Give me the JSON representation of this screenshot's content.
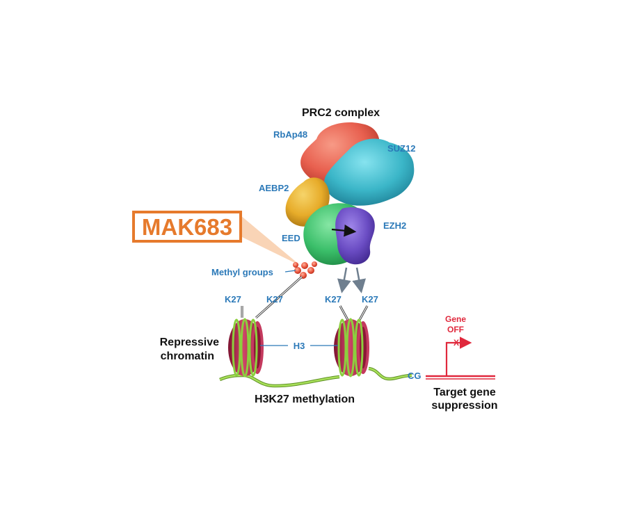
{
  "title": "PRC2 complex",
  "drug": {
    "name": "MAK683",
    "color": "#e67a2c"
  },
  "subunits": {
    "rbap48": "RbAp48",
    "suz12": "SUZ12",
    "aebp2": "AEBP2",
    "eed": "EED",
    "ezh2": "EZH2"
  },
  "methyl_groups": "Methyl groups",
  "residues": {
    "k27": "K27"
  },
  "histone": "H3",
  "cg": "CG",
  "gene_state": {
    "line1": "Gene",
    "line2": "OFF",
    "mark": "X"
  },
  "captions": {
    "repressive_line1": "Repressive",
    "repressive_line2": "chromatin",
    "methylation": "H3K27 methylation",
    "target_line1": "Target gene",
    "target_line2": "suppression"
  },
  "colors": {
    "label_blue": "#2b79b8",
    "nucleosome": "#b02345",
    "dna_green": "#8ccf3e",
    "gene_red": "#e0283c",
    "rbap48": "#e8604f",
    "suz12": "#3bb6c8",
    "aebp2": "#e7ac2a",
    "eed": "#3bbf6a",
    "ezh2": "#6a4cc3",
    "methyl": "#e9533b"
  }
}
